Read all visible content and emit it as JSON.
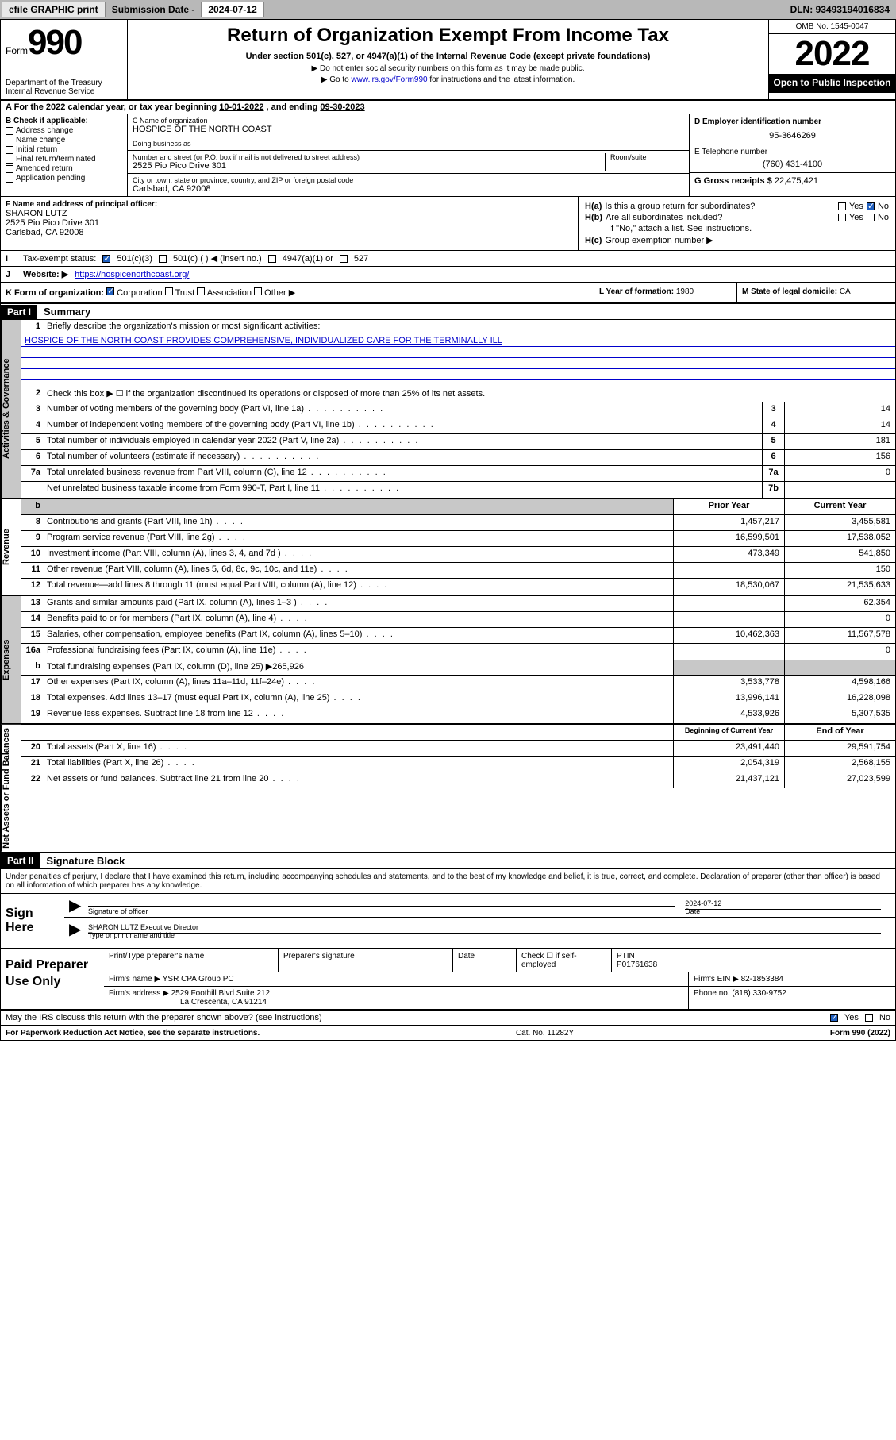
{
  "topbar": {
    "efile": "efile GRAPHIC print",
    "sub_lbl": "Submission Date - ",
    "sub_date": "2024-07-12",
    "dln_lbl": "DLN: ",
    "dln": "93493194016834"
  },
  "header": {
    "form_word": "Form",
    "form_num": "990",
    "title": "Return of Organization Exempt From Income Tax",
    "sub": "Under section 501(c), 527, or 4947(a)(1) of the Internal Revenue Code (except private foundations)",
    "note1": "▶ Do not enter social security numbers on this form as it may be made public.",
    "note2_pre": "▶ Go to ",
    "note2_link": "www.irs.gov/Form990",
    "note2_post": " for instructions and the latest information.",
    "dept": "Department of the Treasury",
    "irs": "Internal Revenue Service",
    "omb": "OMB No. 1545-0047",
    "year": "2022",
    "open": "Open to Public Inspection"
  },
  "A": {
    "text_pre": "For the 2022 calendar year, or tax year beginning ",
    "begin": "10-01-2022",
    "mid": " , and ending ",
    "end": "09-30-2023"
  },
  "B": {
    "label": "B Check if applicable:",
    "items": [
      "Address change",
      "Name change",
      "Initial return",
      "Final return/terminated",
      "Amended return",
      "Application pending"
    ]
  },
  "C": {
    "name_lbl": "C Name of organization",
    "name": "HOSPICE OF THE NORTH COAST",
    "dba_lbl": "Doing business as",
    "dba": "",
    "street_lbl": "Number and street (or P.O. box if mail is not delivered to street address)",
    "room_lbl": "Room/suite",
    "street": "2525 Pio Pico Drive 301",
    "city_lbl": "City or town, state or province, country, and ZIP or foreign postal code",
    "city": "Carlsbad, CA  92008"
  },
  "D": {
    "lbl": "D Employer identification number",
    "val": "95-3646269"
  },
  "E": {
    "lbl": "E Telephone number",
    "val": "(760) 431-4100"
  },
  "G": {
    "lbl": "G Gross receipts $ ",
    "val": "22,475,421"
  },
  "F": {
    "lbl": "F Name and address of principal officer:",
    "name": "SHARON LUTZ",
    "addr1": "2525 Pio Pico Drive 301",
    "addr2": "Carlsbad, CA  92008"
  },
  "H": {
    "a_lbl": "Is this a group return for subordinates?",
    "a_pre": "H(a)",
    "b_pre": "H(b)",
    "b_lbl": "Are all subordinates included?",
    "b_note": "If \"No,\" attach a list. See instructions.",
    "c_pre": "H(c)",
    "c_lbl": "Group exemption number ▶",
    "yes": "Yes",
    "no": "No"
  },
  "I": {
    "lbl": "Tax-exempt status:",
    "opt1": "501(c)(3)",
    "opt2": "501(c) (  ) ◀ (insert no.)",
    "opt3": "4947(a)(1) or",
    "opt4": "527"
  },
  "J": {
    "lbl": "Website: ▶",
    "val": "https://hospicenorthcoast.org/"
  },
  "K": {
    "lbl": "K Form of organization:",
    "corp": "Corporation",
    "trust": "Trust",
    "assoc": "Association",
    "other": "Other ▶"
  },
  "L": {
    "lbl": "L Year of formation: ",
    "val": "1980"
  },
  "M": {
    "lbl": "M State of legal domicile: ",
    "val": "CA"
  },
  "part1": {
    "hdr": "Part I",
    "title": "Summary"
  },
  "s1": {
    "lbl": "Briefly describe the organization's mission or most significant activities:",
    "mission": "HOSPICE OF THE NORTH COAST PROVIDES COMPREHENSIVE, INDIVIDUALIZED CARE FOR THE TERMINALLY ILL"
  },
  "s2": "Check this box ▶ ☐  if the organization discontinued its operations or disposed of more than 25% of its net assets.",
  "rows_gov": [
    {
      "n": "3",
      "t": "Number of voting members of the governing body (Part VI, line 1a)",
      "b": "3",
      "v": "14"
    },
    {
      "n": "4",
      "t": "Number of independent voting members of the governing body (Part VI, line 1b)",
      "b": "4",
      "v": "14"
    },
    {
      "n": "5",
      "t": "Total number of individuals employed in calendar year 2022 (Part V, line 2a)",
      "b": "5",
      "v": "181"
    },
    {
      "n": "6",
      "t": "Total number of volunteers (estimate if necessary)",
      "b": "6",
      "v": "156"
    },
    {
      "n": "7a",
      "t": "Total unrelated business revenue from Part VIII, column (C), line 12",
      "b": "7a",
      "v": "0"
    },
    {
      "n": "",
      "t": "Net unrelated business taxable income from Form 990-T, Part I, line 11",
      "b": "7b",
      "v": ""
    }
  ],
  "hdr_py": "Prior Year",
  "hdr_cy": "Current Year",
  "rows_rev": [
    {
      "n": "8",
      "t": "Contributions and grants (Part VIII, line 1h)",
      "py": "1,457,217",
      "cy": "3,455,581"
    },
    {
      "n": "9",
      "t": "Program service revenue (Part VIII, line 2g)",
      "py": "16,599,501",
      "cy": "17,538,052"
    },
    {
      "n": "10",
      "t": "Investment income (Part VIII, column (A), lines 3, 4, and 7d )",
      "py": "473,349",
      "cy": "541,850"
    },
    {
      "n": "11",
      "t": "Other revenue (Part VIII, column (A), lines 5, 6d, 8c, 9c, 10c, and 11e)",
      "py": "",
      "cy": "150"
    },
    {
      "n": "12",
      "t": "Total revenue—add lines 8 through 11 (must equal Part VIII, column (A), line 12)",
      "py": "18,530,067",
      "cy": "21,535,633"
    }
  ],
  "rows_exp": [
    {
      "n": "13",
      "t": "Grants and similar amounts paid (Part IX, column (A), lines 1–3 )",
      "py": "",
      "cy": "62,354"
    },
    {
      "n": "14",
      "t": "Benefits paid to or for members (Part IX, column (A), line 4)",
      "py": "",
      "cy": "0"
    },
    {
      "n": "15",
      "t": "Salaries, other compensation, employee benefits (Part IX, column (A), lines 5–10)",
      "py": "10,462,363",
      "cy": "11,567,578"
    },
    {
      "n": "16a",
      "t": "Professional fundraising fees (Part IX, column (A), line 11e)",
      "py": "",
      "cy": "0"
    }
  ],
  "s16b": {
    "n": "b",
    "t": "Total fundraising expenses (Part IX, column (D), line 25) ▶",
    "v": "265,926"
  },
  "rows_exp2": [
    {
      "n": "17",
      "t": "Other expenses (Part IX, column (A), lines 11a–11d, 11f–24e)",
      "py": "3,533,778",
      "cy": "4,598,166"
    },
    {
      "n": "18",
      "t": "Total expenses. Add lines 13–17 (must equal Part IX, column (A), line 25)",
      "py": "13,996,141",
      "cy": "16,228,098"
    },
    {
      "n": "19",
      "t": "Revenue less expenses. Subtract line 18 from line 12",
      "py": "4,533,926",
      "cy": "5,307,535"
    }
  ],
  "hdr_boy": "Beginning of Current Year",
  "hdr_eoy": "End of Year",
  "rows_na": [
    {
      "n": "20",
      "t": "Total assets (Part X, line 16)",
      "py": "23,491,440",
      "cy": "29,591,754"
    },
    {
      "n": "21",
      "t": "Total liabilities (Part X, line 26)",
      "py": "2,054,319",
      "cy": "2,568,155"
    },
    {
      "n": "22",
      "t": "Net assets or fund balances. Subtract line 21 from line 20",
      "py": "21,437,121",
      "cy": "27,023,599"
    }
  ],
  "vtabs": {
    "gov": "Activities & Governance",
    "rev": "Revenue",
    "exp": "Expenses",
    "na": "Net Assets or Fund Balances"
  },
  "part2": {
    "hdr": "Part II",
    "title": "Signature Block"
  },
  "penalty": "Under penalties of perjury, I declare that I have examined this return, including accompanying schedules and statements, and to the best of my knowledge and belief, it is true, correct, and complete. Declaration of preparer (other than officer) is based on all information of which preparer has any knowledge.",
  "sign": {
    "here": "Sign Here",
    "sig_lbl": "Signature of officer",
    "date_lbl": "Date",
    "date": "2024-07-12",
    "name": "SHARON LUTZ  Executive Director",
    "name_lbl": "Type or print name and title"
  },
  "prep": {
    "here": "Paid Preparer Use Only",
    "h1": "Print/Type preparer's name",
    "h2": "Preparer's signature",
    "h3": "Date",
    "h4": "Check ☐ if self-employed",
    "h5": "PTIN",
    "ptin": "P01761638",
    "firm_lbl": "Firm's name   ▶ ",
    "firm": "YSR CPA Group PC",
    "ein_lbl": "Firm's EIN ▶ ",
    "ein": "82-1853384",
    "addr_lbl": "Firm's address ▶ ",
    "addr1": "2529 Foothill Blvd Suite 212",
    "addr2": "La Crescenta, CA  91214",
    "ph_lbl": "Phone no. ",
    "ph": "(818) 330-9752"
  },
  "discuss": {
    "txt": "May the IRS discuss this return with the preparer shown above? (see instructions)",
    "yes": "Yes",
    "no": "No"
  },
  "footer": {
    "pra": "For Paperwork Reduction Act Notice, see the separate instructions.",
    "cat": "Cat. No. 11282Y",
    "form": "Form 990 (2022)"
  }
}
